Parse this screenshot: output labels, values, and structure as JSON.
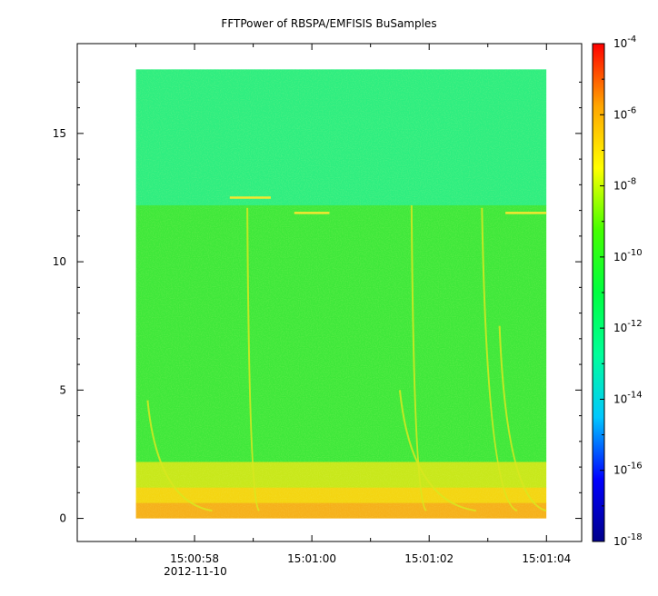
{
  "chart_data": {
    "type": "heatmap",
    "title": "FFTPower of RBSPA/EMFISIS  BuSamples",
    "xlabel": "",
    "ylabel": "",
    "x_ticks": [
      {
        "label": "15:00:58",
        "sub": "2012-11-10",
        "sec": 58.0
      },
      {
        "label": "15:01:00",
        "sub": "",
        "sec": 60.0
      },
      {
        "label": "15:01:02",
        "sub": "",
        "sec": 62.0
      },
      {
        "label": "15:01:04",
        "sub": "",
        "sec": 64.0
      }
    ],
    "xlim_sec": [
      56.0,
      64.6
    ],
    "data_extent_sec": [
      57.0,
      64.0
    ],
    "y_ticks": [
      0,
      5,
      10,
      15
    ],
    "ylim": [
      -0.9,
      18.5
    ],
    "data_extent_y": [
      0,
      17.5
    ],
    "colorbar": {
      "scale": "log",
      "range": [
        -18,
        -4
      ],
      "ticks": [
        {
          "base": "10",
          "exp": "-4",
          "value": -4
        },
        {
          "base": "10",
          "exp": "-6",
          "value": -6
        },
        {
          "base": "10",
          "exp": "-8",
          "value": -8
        },
        {
          "base": "10",
          "exp": "-10",
          "value": -10
        },
        {
          "base": "10",
          "exp": "-12",
          "value": -12
        },
        {
          "base": "10",
          "exp": "-14",
          "value": -14
        },
        {
          "base": "10",
          "exp": "-16",
          "value": -16
        },
        {
          "base": "10",
          "exp": "-18",
          "value": -18
        }
      ],
      "colors": [
        "#00008b",
        "#0000ff",
        "#00c8ff",
        "#00ff9a",
        "#00ff40",
        "#44ff00",
        "#ffff00",
        "#ffa500",
        "#ff0000"
      ]
    },
    "bands": [
      {
        "y_from": 12.2,
        "y_to": 17.5,
        "log_power": -11.6,
        "color": "#2dee80"
      },
      {
        "y_from": 2.2,
        "y_to": 12.2,
        "log_power": -10.2,
        "color": "#3ee83a"
      },
      {
        "y_from": 1.2,
        "y_to": 2.2,
        "log_power": -8.7,
        "color": "#c8e81a"
      },
      {
        "y_from": 0.6,
        "y_to": 1.2,
        "log_power": -8.0,
        "color": "#f4d511"
      },
      {
        "y_from": 0.0,
        "y_to": 0.6,
        "log_power": -7.4,
        "color": "#f6b01a"
      }
    ],
    "whistlers": [
      {
        "sec_start": 57.2,
        "sec_end": 58.3,
        "y_top": 4.6
      },
      {
        "sec_start": 58.9,
        "sec_end": 59.1,
        "y_top": 12.1
      },
      {
        "sec_start": 61.7,
        "sec_end": 61.95,
        "y_top": 12.2
      },
      {
        "sec_start": 61.5,
        "sec_end": 62.8,
        "y_top": 5.0
      },
      {
        "sec_start": 62.9,
        "sec_end": 63.5,
        "y_top": 12.1
      },
      {
        "sec_start": 63.2,
        "sec_end": 64.0,
        "y_top": 7.5
      }
    ],
    "line_emissions": [
      {
        "sec_from": 58.6,
        "sec_to": 59.3,
        "y": 12.5
      },
      {
        "sec_from": 59.7,
        "sec_to": 60.3,
        "y": 11.9
      },
      {
        "sec_from": 63.3,
        "sec_to": 64.0,
        "y": 11.9
      }
    ]
  }
}
